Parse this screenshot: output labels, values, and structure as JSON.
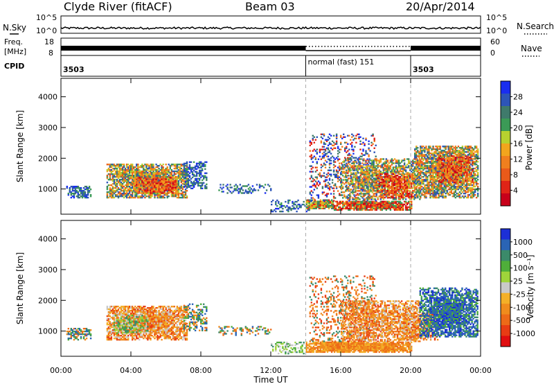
{
  "header": {
    "title_left": "Clyde River (fitACF)",
    "title_center": "Beam 03",
    "title_right": "20/Apr/2014"
  },
  "nsky_panel": {
    "left_label": "N.Sky",
    "right_label": "N.Search",
    "left_ticks": [
      "10^5",
      "10^0"
    ],
    "right_ticks": [
      "10^5",
      "10^0"
    ]
  },
  "freq_panel": {
    "left_label_top": "Freq.",
    "left_label_bottom": "[MHz]",
    "left_ticks": [
      "18",
      "8"
    ],
    "right_label": "Nave",
    "right_ticks": [
      "60",
      "0"
    ]
  },
  "cpid_panel": {
    "label": "CPID",
    "segments": [
      {
        "text": "3503",
        "start_hour": 0
      },
      {
        "text": "normal (fast) 151",
        "start_hour": 14
      },
      {
        "text": "3503",
        "start_hour": 20
      }
    ]
  },
  "mode_change_hours": [
    14,
    20
  ],
  "chart_data": [
    {
      "type": "heatmap",
      "name": "power",
      "ylabel": "Slant Range [km]",
      "x_range_hours": [
        0,
        24
      ],
      "ylim": [
        180,
        4600
      ],
      "yticks": [
        1000,
        2000,
        3000,
        4000
      ],
      "colorbar": {
        "label": "Power [dB]",
        "ticks": [
          "4",
          "8",
          "12",
          "16",
          "20",
          "24",
          "28"
        ],
        "colors": [
          "#1a2ef0",
          "#2d55b8",
          "#3f7a6b",
          "#3b9a56",
          "#b7d12f",
          "#f2a51d",
          "#f07f1e",
          "#ea5a1a",
          "#e02417",
          "#c8001a"
        ]
      },
      "patches": [
        {
          "t0": 0.3,
          "t1": 1.7,
          "r0": 700,
          "r1": 1100,
          "palette": "power_low",
          "density": 0.55
        },
        {
          "t0": 2.6,
          "t1": 7.2,
          "r0": 700,
          "r1": 1800,
          "palette": "power_mid",
          "density": 0.8
        },
        {
          "t0": 4.2,
          "t1": 6.6,
          "r0": 850,
          "r1": 1350,
          "palette": "power_high",
          "density": 0.7
        },
        {
          "t0": 7.0,
          "t1": 8.3,
          "r0": 1000,
          "r1": 1900,
          "palette": "power_low",
          "density": 0.5
        },
        {
          "t0": 9.0,
          "t1": 12.0,
          "r0": 850,
          "r1": 1150,
          "palette": "power_low",
          "density": 0.3
        },
        {
          "t0": 12.0,
          "t1": 14.2,
          "r0": 250,
          "r1": 650,
          "palette": "power_low",
          "density": 0.35
        },
        {
          "t0": 14.0,
          "t1": 15.6,
          "r0": 350,
          "r1": 650,
          "palette": "power_band",
          "density": 0.95
        },
        {
          "t0": 15.6,
          "t1": 20.0,
          "r0": 300,
          "r1": 600,
          "palette": "power_band_hot",
          "density": 0.9
        },
        {
          "t0": 14.2,
          "t1": 18.0,
          "r0": 600,
          "r1": 2800,
          "palette": "power_sparse",
          "density": 0.25
        },
        {
          "t0": 16.0,
          "t1": 20.5,
          "r0": 650,
          "r1": 2000,
          "palette": "power_mid",
          "density": 0.6
        },
        {
          "t0": 18.0,
          "t1": 20.2,
          "r0": 700,
          "r1": 1500,
          "palette": "power_high",
          "density": 0.6
        },
        {
          "t0": 20.2,
          "t1": 23.8,
          "r0": 700,
          "r1": 2400,
          "palette": "power_mid",
          "density": 0.75
        },
        {
          "t0": 21.5,
          "t1": 23.5,
          "r0": 1200,
          "r1": 2100,
          "palette": "power_high",
          "density": 0.55
        }
      ]
    },
    {
      "type": "heatmap",
      "name": "velocity",
      "ylabel": "Slant Range [km]",
      "x_range_hours": [
        0,
        24
      ],
      "ylim": [
        180,
        4600
      ],
      "yticks": [
        1000,
        2000,
        3000,
        4000
      ],
      "xticks": [
        "00:00",
        "04:00",
        "08:00",
        "12:00",
        "16:00",
        "20:00",
        "00:00"
      ],
      "xlabel": "Time UT",
      "colorbar": {
        "label": "Velocity [m s⁻¹]",
        "ticks": [
          "1000",
          "500",
          "100",
          "25",
          "-25",
          "-100",
          "-500",
          "-1000"
        ],
        "colors": [
          "#1c2fd6",
          "#2a64b5",
          "#3b8a6a",
          "#4fae3a",
          "#9fd43a",
          "#c9c9c9",
          "#f4b028",
          "#f08c1d",
          "#ed6a18",
          "#e83c14",
          "#e00e10"
        ]
      },
      "patches": [
        {
          "t0": 0.3,
          "t1": 1.7,
          "r0": 700,
          "r1": 1100,
          "palette": "vel_mix",
          "density": 0.5
        },
        {
          "t0": 2.6,
          "t1": 7.2,
          "r0": 700,
          "r1": 1800,
          "palette": "vel_neg",
          "density": 0.8
        },
        {
          "t0": 3.0,
          "t1": 5.0,
          "r0": 900,
          "r1": 1500,
          "palette": "vel_green",
          "density": 0.5
        },
        {
          "t0": 7.0,
          "t1": 8.3,
          "r0": 1000,
          "r1": 1900,
          "palette": "vel_mix",
          "density": 0.45
        },
        {
          "t0": 9.0,
          "t1": 12.0,
          "r0": 850,
          "r1": 1150,
          "palette": "vel_mix",
          "density": 0.3
        },
        {
          "t0": 12.0,
          "t1": 14.0,
          "r0": 250,
          "r1": 650,
          "palette": "vel_green",
          "density": 0.35
        },
        {
          "t0": 14.0,
          "t1": 20.0,
          "r0": 300,
          "r1": 650,
          "palette": "vel_band",
          "density": 0.95
        },
        {
          "t0": 14.2,
          "t1": 18.0,
          "r0": 650,
          "r1": 2800,
          "palette": "vel_neg_sparse",
          "density": 0.25
        },
        {
          "t0": 16.0,
          "t1": 20.5,
          "r0": 650,
          "r1": 2000,
          "palette": "vel_neg",
          "density": 0.6
        },
        {
          "t0": 19.5,
          "t1": 21.5,
          "r0": 700,
          "r1": 1600,
          "palette": "vel_neg",
          "density": 0.55
        },
        {
          "t0": 20.5,
          "t1": 23.8,
          "r0": 800,
          "r1": 2400,
          "palette": "vel_pos",
          "density": 0.75
        }
      ]
    }
  ]
}
